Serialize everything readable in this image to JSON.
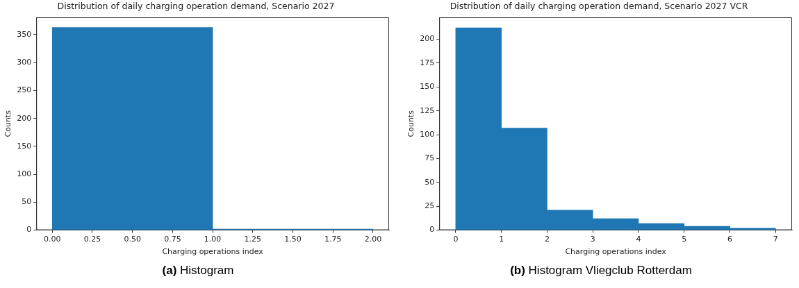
{
  "chart_data": [
    {
      "type": "histogram",
      "title": "Distribution of daily charging operation demand, Scenario 2027",
      "xlabel": "Charging operations index",
      "ylabel": "Counts",
      "bins": [
        0,
        1,
        2
      ],
      "values": [
        363,
        2
      ],
      "color": "#1f77b4",
      "xlim": [
        -0.1,
        2.1
      ],
      "ylim": [
        0,
        381
      ],
      "xticks": [
        {
          "value": 0,
          "label": "0.00"
        },
        {
          "value": 0.25,
          "label": "0.25"
        },
        {
          "value": 0.5,
          "label": "0.50"
        },
        {
          "value": 0.75,
          "label": "0.75"
        },
        {
          "value": 1,
          "label": "1.00"
        },
        {
          "value": 1.25,
          "label": "1.25"
        },
        {
          "value": 1.5,
          "label": "1.50"
        },
        {
          "value": 1.75,
          "label": "1.75"
        },
        {
          "value": 2,
          "label": "2.00"
        }
      ],
      "yticks": [
        0,
        50,
        100,
        150,
        200,
        250,
        300,
        350
      ],
      "annotations": [
        "(a) Histogram"
      ]
    },
    {
      "type": "histogram",
      "title": "Distribution of daily charging operation demand, Scenario 2027 VCR",
      "xlabel": "Charging operations index",
      "ylabel": "Counts",
      "bins": [
        0,
        1,
        2,
        3,
        4,
        5,
        6,
        7
      ],
      "values": [
        212,
        107,
        21,
        12,
        7,
        4,
        2
      ],
      "color": "#1f77b4",
      "xlim": [
        -0.36,
        7.36
      ],
      "ylim": [
        0,
        223
      ],
      "xticks": [
        0,
        1,
        2,
        3,
        4,
        5,
        6,
        7
      ],
      "yticks": [
        0,
        25,
        50,
        75,
        100,
        125,
        150,
        175,
        200
      ],
      "annotations": [
        "(b) Histogram Vliegclub Rotterdam"
      ]
    }
  ]
}
